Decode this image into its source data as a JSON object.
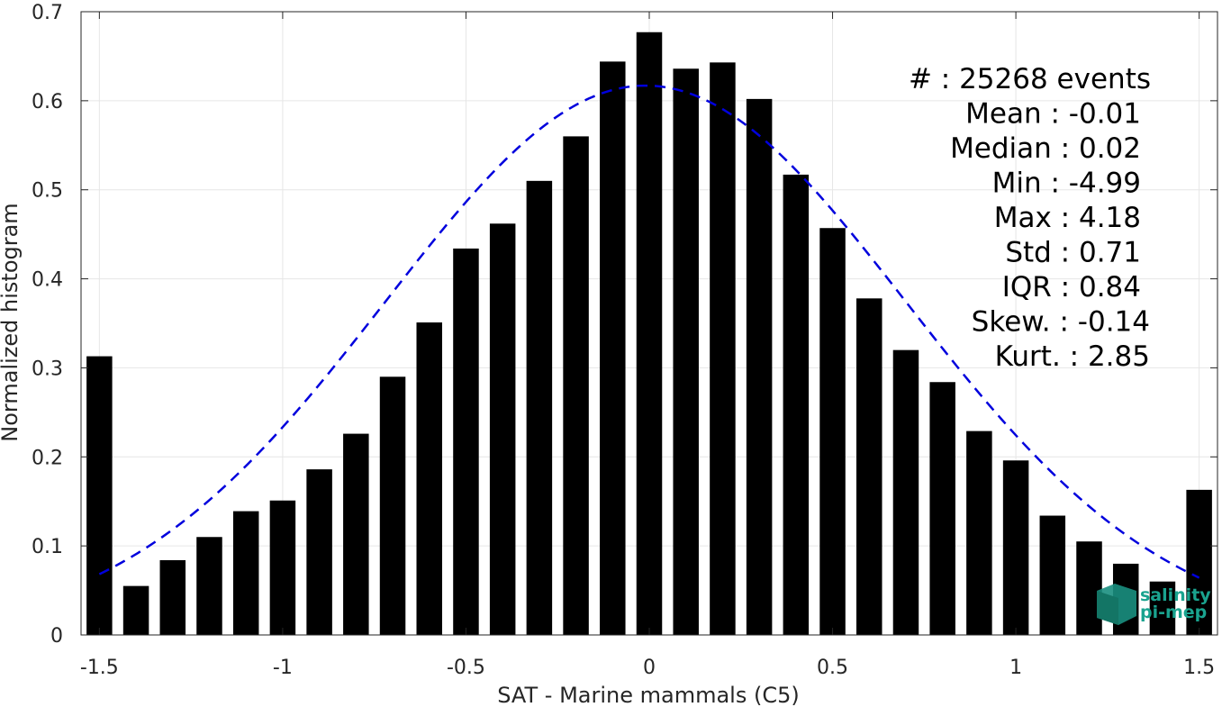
{
  "chart_data": {
    "type": "bar",
    "xlabel": "SAT - Marine mammals (C5)",
    "ylabel": "Normalized histogram",
    "xlim": [
      -1.55,
      1.55
    ],
    "ylim": [
      0,
      0.7
    ],
    "grid": true,
    "xticks": [
      -1.5,
      -1,
      -0.5,
      0,
      0.5,
      1,
      1.5
    ],
    "xtick_labels": [
      "-1.5",
      "-1",
      "-0.5",
      "0",
      "0.5",
      "1",
      "1.5"
    ],
    "yticks": [
      0,
      0.1,
      0.2,
      0.3,
      0.4,
      0.5,
      0.6,
      0.7
    ],
    "ytick_labels": [
      "0",
      "0.1",
      "0.2",
      "0.3",
      "0.4",
      "0.5",
      "0.6",
      "0.7"
    ],
    "bar_width": 0.07,
    "bar_color": "#000000",
    "x": [
      -1.5,
      -1.4,
      -1.3,
      -1.2,
      -1.1,
      -1.0,
      -0.9,
      -0.8,
      -0.7,
      -0.6,
      -0.5,
      -0.4,
      -0.3,
      -0.2,
      -0.1,
      0.0,
      0.1,
      0.2,
      0.3,
      0.4,
      0.5,
      0.6,
      0.7,
      0.8,
      0.9,
      1.0,
      1.1,
      1.2,
      1.3,
      1.4,
      1.5
    ],
    "values": [
      0.313,
      0.055,
      0.084,
      0.11,
      0.139,
      0.151,
      0.186,
      0.226,
      0.29,
      0.351,
      0.434,
      0.462,
      0.51,
      0.56,
      0.644,
      0.677,
      0.636,
      0.643,
      0.602,
      0.517,
      0.457,
      0.378,
      0.32,
      0.284,
      0.229,
      0.196,
      0.134,
      0.105,
      0.08,
      0.06,
      0.163
    ],
    "fit_curve": {
      "style": "dashed",
      "color": "#0000dd",
      "mean": -0.01,
      "std": 0.71,
      "peak": 0.617,
      "x_range": [
        -1.5,
        1.5
      ]
    },
    "annotations": [
      "#  : 25268 events",
      "Mean : -0.01",
      "Median : 0.02",
      "Min : -4.99",
      "Max : 4.18",
      "Std : 0.71",
      "IQR : 0.84",
      "Skew. : -0.14",
      "Kurt. : 2.85"
    ]
  },
  "logo": {
    "line1": "salinity",
    "line2": "pi-mep",
    "color": "#1aa38f"
  }
}
